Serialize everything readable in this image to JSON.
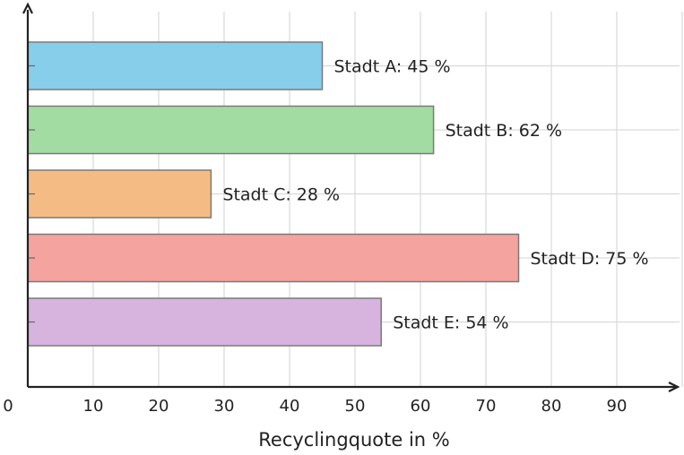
{
  "chart_data": {
    "type": "bar",
    "orientation": "horizontal",
    "categories": [
      "Stadt A",
      "Stadt B",
      "Stadt C",
      "Stadt D",
      "Stadt E"
    ],
    "values": [
      45,
      62,
      28,
      75,
      54
    ],
    "data_labels": [
      "Stadt A: 45 %",
      "Stadt B: 62 %",
      "Stadt C: 28 %",
      "Stadt D: 75 %",
      "Stadt E: 54 %"
    ],
    "colors": [
      "#87ceeb",
      "#a3dca3",
      "#f4bc84",
      "#f4a39f",
      "#d6b4de"
    ],
    "xlabel": "Recyclingquote in %",
    "ylabel": "",
    "xlim": [
      0,
      100
    ],
    "x_ticks": [
      0,
      10,
      20,
      30,
      40,
      50,
      60,
      70,
      80,
      90
    ],
    "grid": true,
    "legend": "none"
  }
}
